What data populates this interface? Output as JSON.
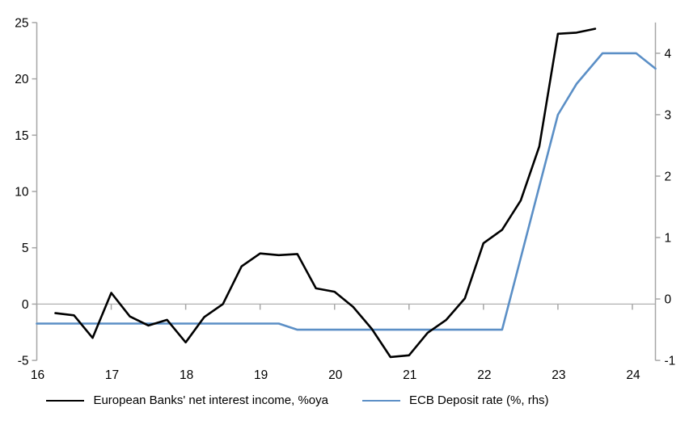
{
  "chart_data": {
    "type": "line",
    "title": "",
    "legend_position": "bottom",
    "grid": "zero-line-only",
    "x_axis": {
      "min": 16,
      "max": 24.31,
      "ticks": [
        16,
        17,
        18,
        19,
        20,
        21,
        22,
        23,
        24
      ]
    },
    "y_axis_left": {
      "min": -5,
      "max": 25,
      "ticks": [
        25,
        20,
        15,
        10,
        5,
        0,
        -5
      ]
    },
    "y_axis_right": {
      "min": -1,
      "max": 4.5,
      "ticks": [
        4,
        3,
        2,
        1,
        0,
        -1
      ]
    },
    "series": [
      {
        "name": "European Banks' net interest income, %oya",
        "axis": "left",
        "color": "#000000",
        "x": [
          16.25,
          16.5,
          16.75,
          17,
          17.25,
          17.5,
          17.75,
          18,
          18.25,
          18.5,
          18.75,
          19,
          19.25,
          19.5,
          19.75,
          20,
          20.25,
          20.5,
          20.75,
          21,
          21.25,
          21.5,
          21.75,
          22,
          22.25,
          22.5,
          22.75,
          23,
          23.25,
          23.5
        ],
        "values": [
          -0.8,
          -1.0,
          -3.0,
          1.0,
          -1.1,
          -1.9,
          -1.4,
          -3.4,
          -1.15,
          0.0,
          3.35,
          4.5,
          4.35,
          4.45,
          1.4,
          1.1,
          -0.25,
          -2.2,
          -4.7,
          -4.55,
          -2.55,
          -1.4,
          0.5,
          5.4,
          6.6,
          9.2,
          14.0,
          24.0,
          24.1,
          24.45
        ]
      },
      {
        "name": "ECB Deposit rate (%, rhs)",
        "axis": "right",
        "color": "#5b8fc6",
        "x": [
          16,
          19.25,
          19.5,
          22.25,
          23,
          23.25,
          23.6,
          24.05,
          24.31
        ],
        "values": [
          -0.4,
          -0.4,
          -0.5,
          -0.5,
          3.0,
          3.5,
          4.0,
          4.0,
          3.75
        ]
      }
    ]
  },
  "colors": {
    "axis": "#a6a6a6",
    "zero_line": "#b0b0b0",
    "tick_text": "#000000",
    "background": "#ffffff"
  }
}
